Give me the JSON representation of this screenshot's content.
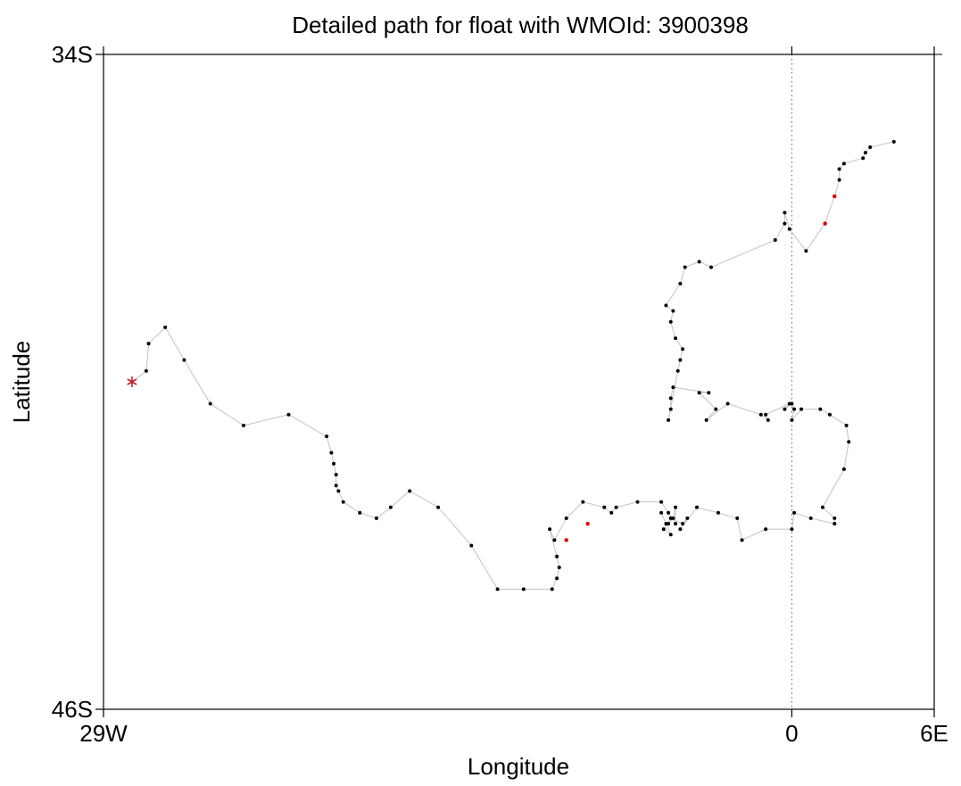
{
  "chart_data": {
    "type": "scatter",
    "title": "Detailed path for float with WMOId: 3900398",
    "xlabel": "Longitude",
    "ylabel": "Latitude",
    "xlim": [
      -29,
      6
    ],
    "ylim": [
      -46,
      -34
    ],
    "x_ticks": [
      {
        "value": -29,
        "label": "29W"
      },
      {
        "value": 0,
        "label": "0"
      },
      {
        "value": 6,
        "label": "6E"
      }
    ],
    "y_ticks": [
      {
        "value": -34,
        "label": "34S"
      },
      {
        "value": -46,
        "label": "46S"
      }
    ],
    "reference_line_x": 0,
    "grid": false,
    "colors": {
      "path": "#c8c8c8",
      "point": "#000000",
      "highlight": "#e00000",
      "start_marker": "#c0282d"
    },
    "start": {
      "lon": -27.8,
      "lat": -40.0
    },
    "series": [
      {
        "points": [
          [
            -27.8,
            -40.0
          ],
          [
            -27.2,
            -39.8
          ],
          [
            -27.1,
            -39.3
          ],
          [
            -26.4,
            -39.0
          ],
          [
            -25.6,
            -39.6
          ],
          [
            -24.5,
            -40.4
          ],
          [
            -23.1,
            -40.8
          ],
          [
            -21.2,
            -40.6
          ],
          [
            -19.6,
            -41.0
          ],
          [
            -19.4,
            -41.3
          ],
          [
            -19.3,
            -41.5
          ],
          [
            -19.2,
            -41.7
          ],
          [
            -19.2,
            -41.9
          ],
          [
            -19.1,
            -42.0
          ],
          [
            -18.9,
            -42.2
          ],
          [
            -18.2,
            -42.4
          ],
          [
            -17.5,
            -42.5
          ],
          [
            -16.9,
            -42.3
          ],
          [
            -16.1,
            -42.0
          ],
          [
            -14.9,
            -42.3
          ],
          [
            -13.5,
            -43.0
          ],
          [
            -12.4,
            -43.8
          ],
          [
            -11.3,
            -43.8
          ],
          [
            -10.1,
            -43.8
          ],
          [
            -9.9,
            -43.6
          ],
          [
            -9.8,
            -43.4
          ],
          [
            -9.9,
            -43.2
          ],
          [
            -10.2,
            -42.7
          ],
          [
            -10.0,
            -42.9
          ],
          [
            -9.5,
            -42.5
          ],
          [
            -8.8,
            -42.2
          ],
          [
            -7.9,
            -42.3
          ],
          [
            -7.6,
            -42.4
          ],
          [
            -7.4,
            -42.3
          ],
          [
            -6.5,
            -42.2
          ],
          [
            -5.5,
            -42.2
          ],
          [
            -5.2,
            -42.4
          ],
          [
            -4.9,
            -42.6
          ],
          [
            -4.9,
            -42.3
          ],
          [
            -5.0,
            -42.5
          ],
          [
            -5.2,
            -42.6
          ],
          [
            -5.3,
            -42.6
          ],
          [
            -5.5,
            -42.4
          ],
          [
            -5.1,
            -42.8
          ],
          [
            -5.4,
            -42.7
          ],
          [
            -5.1,
            -42.5
          ],
          [
            -4.6,
            -42.6
          ],
          [
            -4.4,
            -42.5
          ],
          [
            -4.7,
            -42.7
          ],
          [
            -4.0,
            -42.3
          ],
          [
            -3.1,
            -42.4
          ],
          [
            -2.3,
            -42.5
          ],
          [
            -2.1,
            -42.9
          ],
          [
            -1.1,
            -42.7
          ],
          [
            0.0,
            -42.7
          ],
          [
            0.1,
            -42.4
          ],
          [
            0.8,
            -42.5
          ],
          [
            1.8,
            -42.6
          ],
          [
            1.8,
            -42.5
          ],
          [
            1.3,
            -42.3
          ],
          [
            2.2,
            -41.6
          ],
          [
            2.4,
            -41.1
          ],
          [
            2.3,
            -40.8
          ],
          [
            1.6,
            -40.6
          ],
          [
            1.2,
            -40.5
          ],
          [
            0.4,
            -40.5
          ],
          [
            0.0,
            -40.7
          ],
          [
            0.1,
            -40.5
          ],
          [
            0.0,
            -40.4
          ],
          [
            -0.3,
            -40.5
          ],
          [
            -0.1,
            -40.4
          ],
          [
            -1.1,
            -40.6
          ],
          [
            -1.0,
            -40.7
          ],
          [
            -1.3,
            -40.6
          ],
          [
            -2.7,
            -40.4
          ],
          [
            -3.6,
            -40.7
          ],
          [
            -3.2,
            -40.5
          ],
          [
            -3.9,
            -40.2
          ],
          [
            -3.5,
            -40.2
          ],
          [
            -5.0,
            -40.1
          ],
          [
            -5.1,
            -40.3
          ],
          [
            -5.1,
            -40.5
          ],
          [
            -5.2,
            -40.7
          ],
          [
            -4.8,
            -39.8
          ],
          [
            -4.7,
            -39.6
          ],
          [
            -4.6,
            -39.4
          ],
          [
            -4.9,
            -39.2
          ],
          [
            -5.1,
            -38.9
          ],
          [
            -5.0,
            -38.7
          ],
          [
            -5.3,
            -38.6
          ],
          [
            -4.7,
            -38.2
          ],
          [
            -4.5,
            -37.9
          ],
          [
            -3.9,
            -37.8
          ],
          [
            -3.4,
            -37.9
          ],
          [
            -0.7,
            -37.4
          ],
          [
            -0.3,
            -37.1
          ],
          [
            -0.3,
            -36.9
          ],
          [
            -0.1,
            -37.2
          ],
          [
            0.6,
            -37.6
          ],
          [
            1.4,
            -37.1
          ],
          [
            1.8,
            -36.6
          ],
          [
            2.0,
            -36.3
          ],
          [
            2.0,
            -36.1
          ],
          [
            2.2,
            -36.0
          ],
          [
            3.0,
            -35.9
          ],
          [
            3.1,
            -35.8
          ],
          [
            3.3,
            -35.7
          ],
          [
            4.3,
            -35.6
          ]
        ],
        "highlighted_points": [
          [
            1.4,
            -37.1
          ],
          [
            1.8,
            -36.6
          ],
          [
            -8.6,
            -42.6
          ],
          [
            -9.5,
            -42.9
          ]
        ]
      }
    ]
  }
}
